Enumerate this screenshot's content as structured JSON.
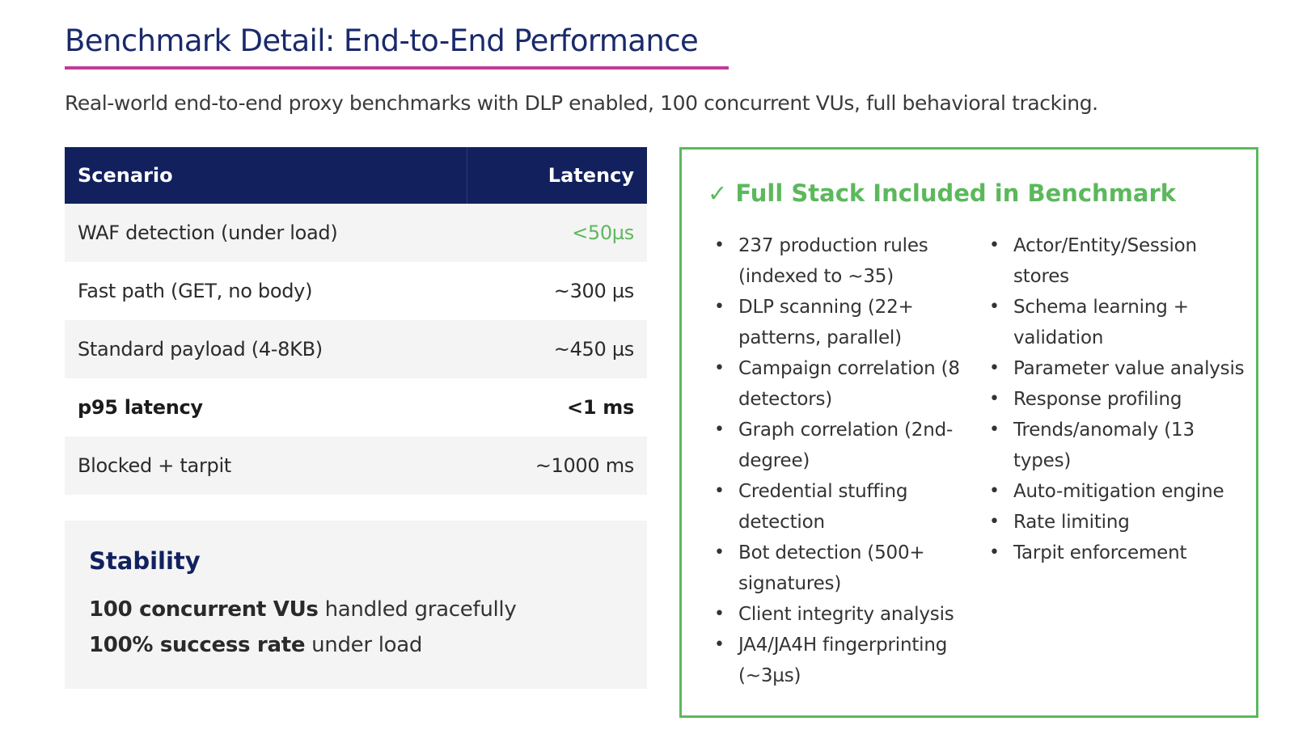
{
  "header": {
    "title": "Benchmark Detail: End-to-End Performance",
    "subtitle": "Real-world end-to-end proxy benchmarks with DLP enabled, 100 concurrent VUs, full behavioral tracking."
  },
  "table": {
    "columns": [
      "Scenario",
      "Latency"
    ],
    "rows": [
      {
        "scenario": "WAF detection (under load)",
        "latency": "<50µs"
      },
      {
        "scenario": "Fast path (GET, no body)",
        "latency": "~300 µs"
      },
      {
        "scenario": "Standard payload (4-8KB)",
        "latency": "~450 µs"
      },
      {
        "scenario": "p95 latency",
        "latency": "<1 ms"
      },
      {
        "scenario": "Blocked + tarpit",
        "latency": "~1000 ms"
      }
    ]
  },
  "stability": {
    "title": "Stability",
    "line1_bold": "100 concurrent VUs",
    "line1_rest": " handled gracefully",
    "line2_bold": "100% success rate",
    "line2_rest": " under load"
  },
  "stack": {
    "title": "✓ Full Stack Included in Benchmark",
    "col1": [
      "237 production rules (indexed to ~35)",
      "DLP scanning (22+ patterns, parallel)",
      "Campaign correlation (8 detectors)",
      "Graph correlation (2nd-degree)",
      "Credential stuffing detection",
      "Bot detection (500+ signatures)",
      "Client integrity analysis",
      "JA4/JA4H fingerprinting (~3µs)"
    ],
    "col2": [
      "Actor/Entity/Session stores",
      "Schema learning + validation",
      "Parameter value analysis",
      "Response profiling",
      "Trends/anomaly (13 types)",
      "Auto-mitigation engine",
      "Rate limiting",
      "Tarpit enforcement"
    ]
  },
  "colors": {
    "navy": "#12215e",
    "accent_underline": "#c13a9a",
    "green": "#5cb85c"
  }
}
